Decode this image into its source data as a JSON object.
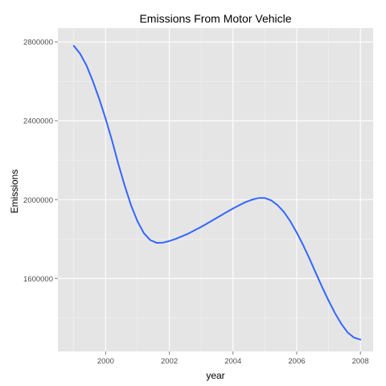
{
  "chart_data": {
    "type": "line",
    "title": "Emissions From Motor Vehicle",
    "xlabel": "year",
    "ylabel": "Emissions",
    "xlim": [
      1998.5,
      2008.4
    ],
    "ylim": [
      1230000,
      2870000
    ],
    "x_ticks": [
      2000,
      2002,
      2004,
      2006,
      2008
    ],
    "x_tick_labels": [
      "2000",
      "2002",
      "2004",
      "2006",
      "2008"
    ],
    "y_ticks": [
      1600000,
      2000000,
      2400000,
      2800000
    ],
    "y_tick_labels": [
      "1600000",
      "2000000",
      "2400000",
      "2800000"
    ],
    "grid": true,
    "legend": "none",
    "colors": {
      "panel_background": "#e5e5e5",
      "grid_major": "#ffffff",
      "grid_minor": "#f2f2f2",
      "line": "#3366ff"
    },
    "series": [
      {
        "x": [
          1999,
          1999.2,
          1999.4,
          1999.6,
          1999.8,
          2000,
          2000.2,
          2000.4,
          2000.6,
          2000.8,
          2001,
          2001.2,
          2001.4,
          2001.6,
          2001.8,
          2002,
          2002.2,
          2002.4,
          2002.6,
          2002.8,
          2003,
          2003.2,
          2003.4,
          2003.6,
          2003.8,
          2004,
          2004.2,
          2004.4,
          2004.6,
          2004.8,
          2005,
          2005.2,
          2005.4,
          2005.6,
          2005.8,
          2006,
          2006.2,
          2006.4,
          2006.6,
          2006.8,
          2007,
          2007.2,
          2007.4,
          2007.6,
          2007.8,
          2008
        ],
        "values": [
          2780000,
          2740000,
          2680000,
          2600000,
          2510000,
          2410000,
          2300000,
          2180000,
          2070000,
          1970000,
          1890000,
          1830000,
          1795000,
          1781000,
          1782000,
          1790000,
          1801000,
          1814000,
          1828000,
          1845000,
          1862000,
          1880000,
          1899000,
          1918000,
          1937000,
          1955000,
          1972000,
          1988000,
          2000000,
          2008000,
          2008000,
          1996000,
          1972000,
          1937000,
          1890000,
          1833000,
          1770000,
          1701000,
          1628000,
          1556000,
          1488000,
          1425000,
          1370000,
          1326000,
          1300000,
          1290000
        ]
      }
    ]
  }
}
